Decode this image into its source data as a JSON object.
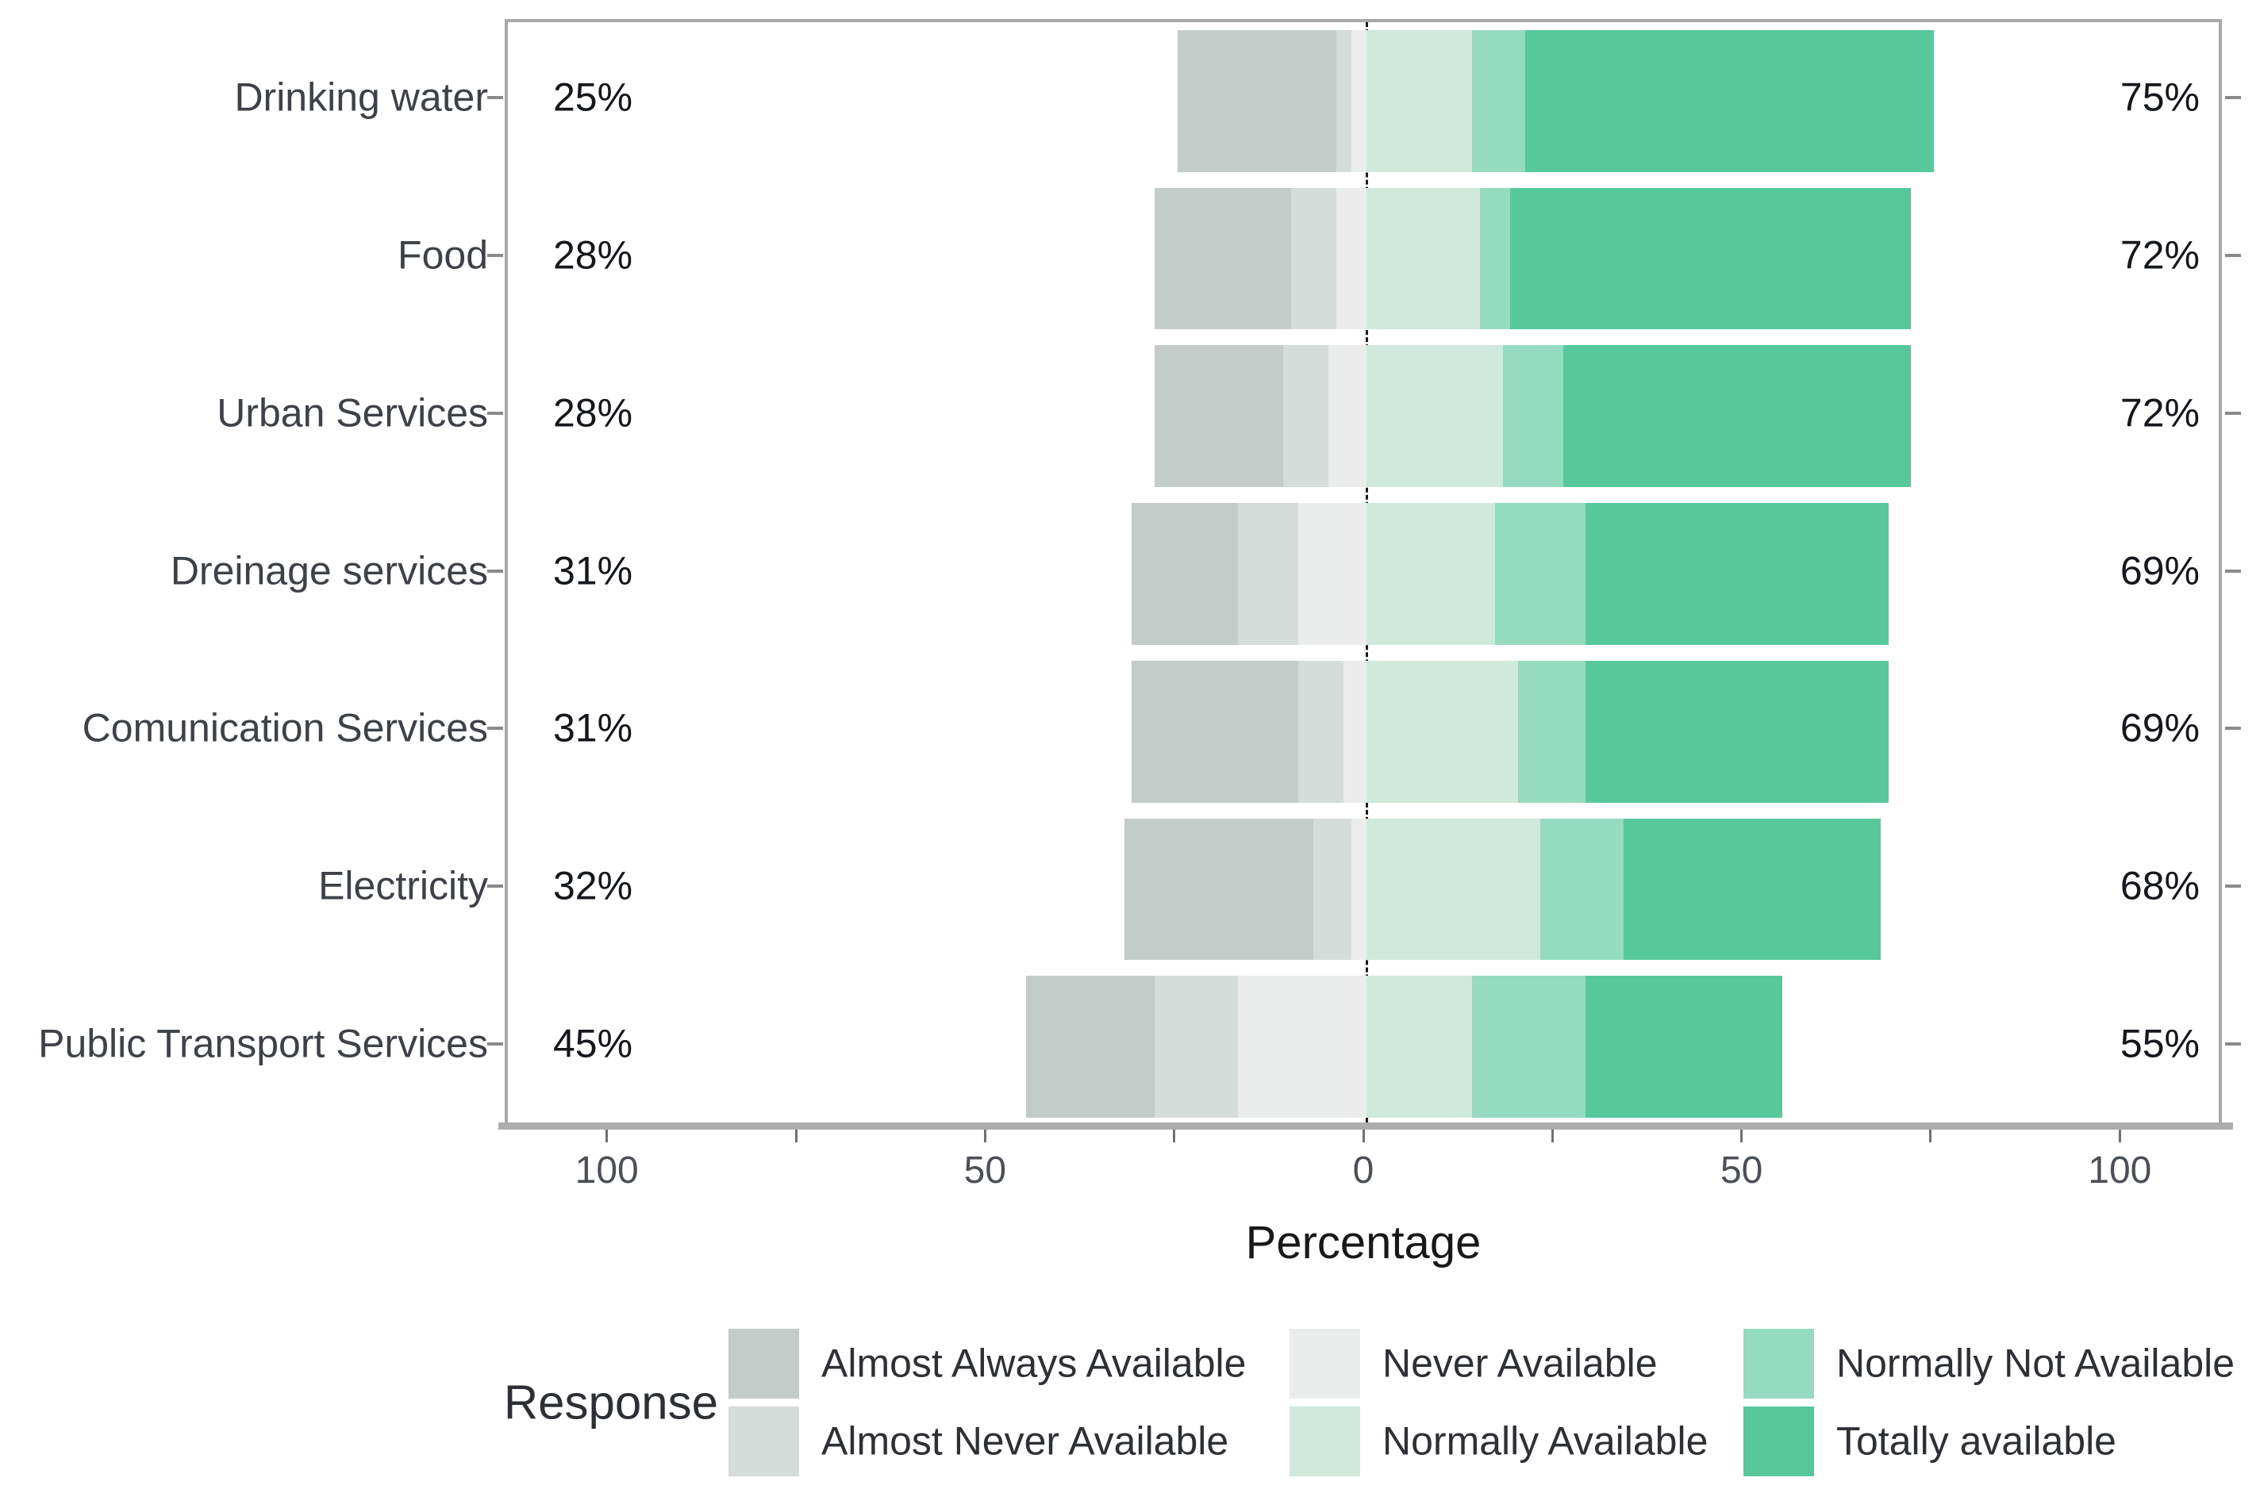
{
  "chart": {
    "type": "diverging_stacked_bar",
    "xlabel": "Percentage",
    "xlim": [
      -113.5,
      113.5
    ],
    "x_major_ticks": [
      {
        "value": -100,
        "label": "100"
      },
      {
        "value": -50,
        "label": "50"
      },
      {
        "value": 0,
        "label": "0"
      },
      {
        "value": 50,
        "label": "50"
      },
      {
        "value": 100,
        "label": "100"
      }
    ],
    "x_minor_ticks": [
      -75,
      -25,
      25,
      75
    ],
    "colors": {
      "almost_always": "#c3ccc9",
      "almost_never": "#d6dcda",
      "never": "#eaedec",
      "normally": "#cfeadd",
      "normally_not": "#95dbbf",
      "totally": "#56c89b"
    },
    "segment_order": [
      "almost_always",
      "almost_never",
      "never",
      "normally",
      "normally_not",
      "totally"
    ],
    "rows": [
      {
        "category": "Drinking water",
        "left_label": "25%",
        "right_label": "75%",
        "segments": {
          "almost_always": 21,
          "almost_never": 2,
          "never": 2,
          "normally": 14,
          "normally_not": 7,
          "totally": 54
        }
      },
      {
        "category": "Food",
        "left_label": "28%",
        "right_label": "72%",
        "segments": {
          "almost_always": 18,
          "almost_never": 6,
          "never": 4,
          "normally": 15,
          "normally_not": 4,
          "totally": 53
        }
      },
      {
        "category": "Urban Services",
        "left_label": "28%",
        "right_label": "72%",
        "segments": {
          "almost_always": 17,
          "almost_never": 6,
          "never": 5,
          "normally": 18,
          "normally_not": 8,
          "totally": 46
        }
      },
      {
        "category": "Dreinage services",
        "left_label": "31%",
        "right_label": "69%",
        "segments": {
          "almost_always": 14,
          "almost_never": 8,
          "never": 9,
          "normally": 17,
          "normally_not": 12,
          "totally": 40
        }
      },
      {
        "category": "Comunication Services",
        "left_label": "31%",
        "right_label": "69%",
        "segments": {
          "almost_always": 22,
          "almost_never": 6,
          "never": 3,
          "normally": 20,
          "normally_not": 9,
          "totally": 40
        }
      },
      {
        "category": "Electricity",
        "left_label": "32%",
        "right_label": "68%",
        "segments": {
          "almost_always": 25,
          "almost_never": 5,
          "never": 2,
          "normally": 23,
          "normally_not": 11,
          "totally": 34
        }
      },
      {
        "category": "Public Transport Services",
        "left_label": "45%",
        "right_label": "55%",
        "segments": {
          "almost_always": 17,
          "almost_never": 11,
          "never": 17,
          "normally": 14,
          "normally_not": 15,
          "totally": 26
        }
      }
    ],
    "legend": {
      "title": "Response",
      "items": [
        {
          "label": "Almost Always Available",
          "color_key": "almost_always",
          "col": 0,
          "row": 0
        },
        {
          "label": "Almost Never Available",
          "color_key": "almost_never",
          "col": 0,
          "row": 1
        },
        {
          "label": "Never Available",
          "color_key": "never",
          "col": 1,
          "row": 0
        },
        {
          "label": "Normally Available",
          "color_key": "normally",
          "col": 1,
          "row": 1
        },
        {
          "label": "Normally Not Available",
          "color_key": "normally_not",
          "col": 2,
          "row": 0
        },
        {
          "label": "Totally available",
          "color_key": "totally",
          "col": 2,
          "row": 1
        }
      ]
    }
  }
}
